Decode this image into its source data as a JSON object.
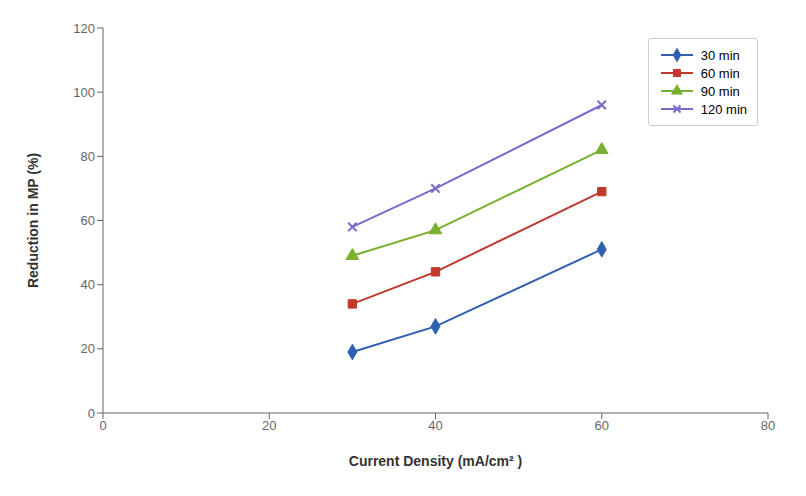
{
  "chart_data": {
    "type": "line",
    "xlabel": "Current Density  (mA/cm² )",
    "ylabel": "Reduction in MP (%)",
    "x": [
      30,
      40,
      60
    ],
    "series": [
      {
        "name": "30 min",
        "color": "#3060B0",
        "marker": "diamond",
        "line_style": "solid",
        "values": [
          19,
          27,
          51
        ]
      },
      {
        "name": "60 min",
        "color": "#C0392B",
        "marker": "square",
        "line_style": "solid",
        "values": [
          34,
          44,
          69
        ]
      },
      {
        "name": "90 min",
        "color": "#7AB030",
        "marker": "triangle",
        "line_style": "solid",
        "values": [
          49,
          57,
          82
        ]
      },
      {
        "name": "120 min",
        "color": "#7B68C8",
        "marker": "x",
        "line_style": "solid",
        "values": [
          58,
          70,
          96
        ]
      }
    ],
    "xlim": [
      0,
      80
    ],
    "ylim": [
      0,
      120
    ],
    "xticks": [
      0,
      20,
      40,
      60,
      80
    ],
    "yticks": [
      0,
      20,
      40,
      60,
      80,
      100,
      120
    ],
    "grid": false,
    "legend": "upper right"
  }
}
